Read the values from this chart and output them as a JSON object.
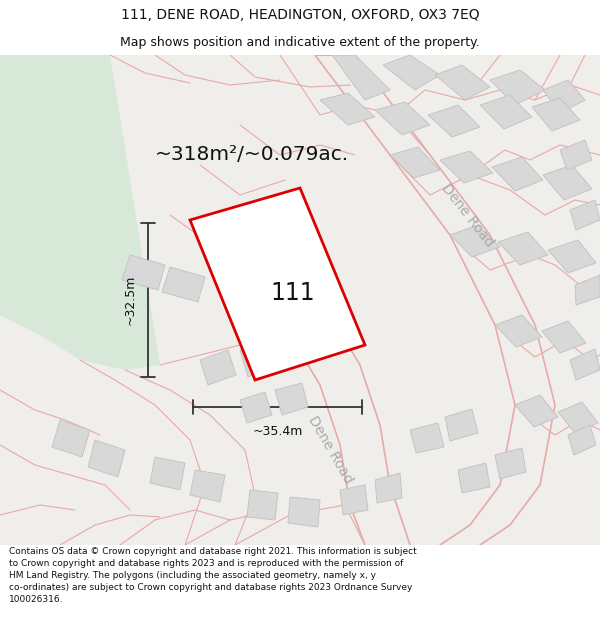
{
  "title": "111, DENE ROAD, HEADINGTON, OXFORD, OX3 7EQ",
  "subtitle": "Map shows position and indicative extent of the property.",
  "area_text": "~318m²/~0.079ac.",
  "label_111": "111",
  "dim_height": "~32.5m",
  "dim_width": "~35.4m",
  "road_label1": "Dene Road",
  "road_label2": "Dene Road",
  "footer": "Contains OS data © Crown copyright and database right 2021. This information is subject to Crown copyright and database rights 2023 and is reproduced with the permission of HM Land Registry. The polygons (including the associated geometry, namely x, y co-ordinates) are subject to Crown copyright and database rights 2023 Ordnance Survey 100026316.",
  "bg_color": "#f5f3f0",
  "map_bg": "#f0eeeb",
  "plot_fill": "#ffffff",
  "plot_edge": "#dd0000",
  "road_color": "#e8a8a8",
  "building_color": "#d8d8d8",
  "building_edge": "#c0c0c0",
  "green_color": "#d8e8d8",
  "dim_line_color": "#333333",
  "title_color": "#111111",
  "footer_color": "#111111"
}
